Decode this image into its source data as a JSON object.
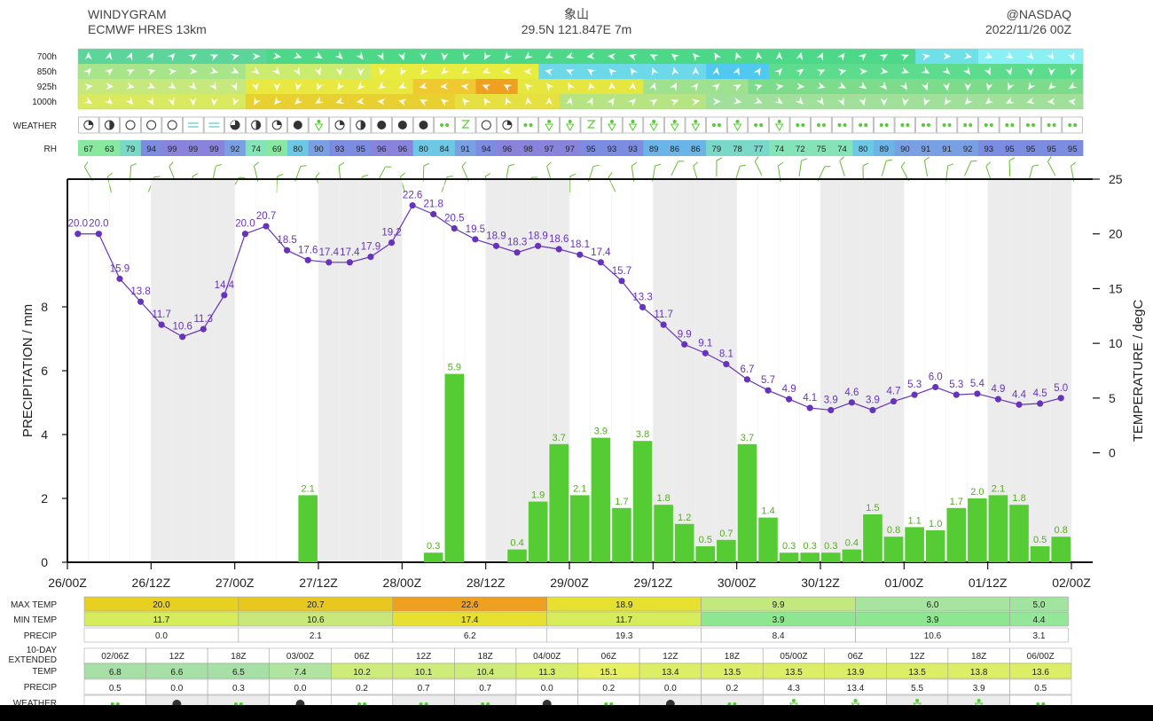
{
  "header": {
    "title": "WINDYGRAM",
    "model": "ECMWF HRES 13km",
    "place": "象山",
    "coords": "29.5N 121.847E 7m",
    "brand": "@NASDAQ",
    "run": "2022/11/26 00Z"
  },
  "strip_labels": {
    "levels": [
      "700h",
      "850h",
      "925h",
      "1000h"
    ],
    "weather": "WEATHER",
    "rh": "RH"
  },
  "rh": [
    67,
    63,
    79,
    94,
    99,
    99,
    99,
    92,
    74,
    69,
    80,
    90,
    93,
    95,
    96,
    96,
    80,
    84,
    91,
    94,
    96,
    98,
    97,
    97,
    95,
    93,
    93,
    89,
    86,
    86,
    79,
    78,
    77,
    74,
    72,
    75,
    74,
    80,
    89,
    90,
    91,
    91,
    92,
    93,
    95,
    95,
    95,
    95
  ],
  "weather": [
    "partly",
    "half",
    "clear",
    "clear",
    "clear",
    "fog",
    "fog",
    "cloud3q",
    "half",
    "partly",
    "overcast",
    "shower",
    "partly",
    "half",
    "overcast",
    "overcast",
    "overcast",
    "rain",
    "storm",
    "clear",
    "partly",
    "rain",
    "shower",
    "shower",
    "storm",
    "shower",
    "shower",
    "shower",
    "shower",
    "shower",
    "rain",
    "shower",
    "rain",
    "shower",
    "rain",
    "rain",
    "rain",
    "rain",
    "rain",
    "rain",
    "rain",
    "rain",
    "rain",
    "rain",
    "rain",
    "rain",
    "rain",
    "rain"
  ],
  "chart_data": {
    "type": "bar+line",
    "x_ticks": [
      "26/00Z",
      "26/12Z",
      "27/00Z",
      "27/12Z",
      "28/00Z",
      "28/12Z",
      "29/00Z",
      "29/12Z",
      "30/00Z",
      "30/12Z",
      "01/00Z",
      "01/12Z",
      "02/00Z"
    ],
    "ylabel_left": "PRECIPITATION / mm",
    "ylim_left": [
      0,
      12
    ],
    "yticks_left": [
      0,
      2,
      4,
      6,
      8
    ],
    "ylabel_right": "TEMPERATURE / degC",
    "ylim_right": [
      -10,
      25
    ],
    "yticks_right": [
      0,
      5,
      10,
      15,
      20,
      25
    ],
    "temperature": [
      20.0,
      20.0,
      15.9,
      13.8,
      11.7,
      10.6,
      11.3,
      14.4,
      20.0,
      20.7,
      18.5,
      17.6,
      17.4,
      17.4,
      17.9,
      19.2,
      22.6,
      21.8,
      20.5,
      19.5,
      18.9,
      18.3,
      18.9,
      18.6,
      18.1,
      17.4,
      15.7,
      13.3,
      11.7,
      9.9,
      9.1,
      8.1,
      6.7,
      5.7,
      4.9,
      4.1,
      3.9,
      4.6,
      3.9,
      4.7,
      5.3,
      6.0,
      5.3,
      5.4,
      4.9,
      4.4,
      4.5,
      5.0
    ],
    "precipitation": [
      {
        "step": 11,
        "value": 2.1
      },
      {
        "step": 17,
        "value": 0.3
      },
      {
        "step": 18,
        "value": 5.9
      },
      {
        "step": 21,
        "value": 0.4
      },
      {
        "step": 22,
        "value": 1.9
      },
      {
        "step": 23,
        "value": 3.7
      },
      {
        "step": 24,
        "value": 2.1
      },
      {
        "step": 25,
        "value": 3.9
      },
      {
        "step": 26,
        "value": 1.7
      },
      {
        "step": 27,
        "value": 3.8
      },
      {
        "step": 28,
        "value": 1.8
      },
      {
        "step": 29,
        "value": 1.2
      },
      {
        "step": 30,
        "value": 0.5
      },
      {
        "step": 31,
        "value": 0.7
      },
      {
        "step": 32,
        "value": 3.7
      },
      {
        "step": 33,
        "value": 1.4
      },
      {
        "step": 34,
        "value": 0.3
      },
      {
        "step": 35,
        "value": 0.3
      },
      {
        "step": 36,
        "value": 0.3
      },
      {
        "step": 37,
        "value": 0.4
      },
      {
        "step": 38,
        "value": 1.5
      },
      {
        "step": 39,
        "value": 0.8
      },
      {
        "step": 40,
        "value": 1.1
      },
      {
        "step": 41,
        "value": 1.0
      },
      {
        "step": 42,
        "value": 1.7
      },
      {
        "step": 43,
        "value": 2.0
      },
      {
        "step": 44,
        "value": 2.1
      },
      {
        "step": 45,
        "value": 1.8
      },
      {
        "step": 46,
        "value": 0.5
      },
      {
        "step": 47,
        "value": 0.8
      }
    ],
    "colors": {
      "temp": "#6633bb",
      "precip": "#55cc33",
      "precip_label": "#55aa22",
      "night": "#ececec"
    }
  },
  "daily_table": {
    "labels": [
      "MAX TEMP",
      "MIN TEMP",
      "PRECIP"
    ],
    "days": [
      {
        "max": "20.0",
        "min": "11.7",
        "precip": "0.0",
        "max_color": "#e8d020",
        "min_color": "#d6ec5a"
      },
      {
        "max": "20.7",
        "min": "10.6",
        "precip": "2.1",
        "max_color": "#e8c820",
        "min_color": "#c8e87a"
      },
      {
        "max": "22.6",
        "min": "17.4",
        "precip": "6.2",
        "max_color": "#f0a020",
        "min_color": "#e8e030"
      },
      {
        "max": "18.9",
        "min": "11.7",
        "precip": "19.3",
        "max_color": "#e6e030",
        "min_color": "#d6ec5a"
      },
      {
        "max": "9.9",
        "min": "3.9",
        "precip": "8.4",
        "max_color": "#c4e880",
        "min_color": "#8ee690"
      },
      {
        "max": "6.0",
        "min": "3.9",
        "precip": "10.6",
        "max_color": "#a6e4a0",
        "min_color": "#8ee690"
      },
      {
        "max": "5.0",
        "min": "4.4",
        "precip": "3.1",
        "max_color": "#a0e4a0",
        "min_color": "#94e698"
      }
    ]
  },
  "extended": {
    "label_a": "10-DAY",
    "label_b": "EXTENDED",
    "temp_label": "TEMP",
    "precip_label": "PRECIP",
    "weather_label": "WEATHER",
    "cols": [
      {
        "t": "02/06Z",
        "temp": "6.8",
        "precip": "0.5",
        "w": "rain",
        "c": "#a6e0a6"
      },
      {
        "t": "12Z",
        "temp": "6.6",
        "precip": "0.0",
        "w": "overcast",
        "c": "#a6e0a6"
      },
      {
        "t": "18Z",
        "temp": "6.5",
        "precip": "0.3",
        "w": "rain",
        "c": "#a6e0a6"
      },
      {
        "t": "03/00Z",
        "temp": "7.4",
        "precip": "0.0",
        "w": "overcast",
        "c": "#b0e4a0"
      },
      {
        "t": "06Z",
        "temp": "10.2",
        "precip": "0.2",
        "w": "rain",
        "c": "#cdec7a"
      },
      {
        "t": "12Z",
        "temp": "10.1",
        "precip": "0.7",
        "w": "rain",
        "c": "#cdec7a"
      },
      {
        "t": "18Z",
        "temp": "10.4",
        "precip": "0.7",
        "w": "rain",
        "c": "#cdec7a"
      },
      {
        "t": "04/00Z",
        "temp": "11.3",
        "precip": "0.0",
        "w": "overcast",
        "c": "#d6ee6a"
      },
      {
        "t": "06Z",
        "temp": "15.1",
        "precip": "0.2",
        "w": "rain",
        "c": "#e6f060"
      },
      {
        "t": "12Z",
        "temp": "13.4",
        "precip": "0.0",
        "w": "overcast",
        "c": "#dcee66"
      },
      {
        "t": "18Z",
        "temp": "13.5",
        "precip": "0.2",
        "w": "rain",
        "c": "#dcee66"
      },
      {
        "t": "05/00Z",
        "temp": "13.5",
        "precip": "4.3",
        "w": "shower",
        "c": "#dcee66"
      },
      {
        "t": "06Z",
        "temp": "13.9",
        "precip": "13.4",
        "w": "shower",
        "c": "#dcee66"
      },
      {
        "t": "12Z",
        "temp": "13.5",
        "precip": "5.5",
        "w": "shower",
        "c": "#dcee66"
      },
      {
        "t": "18Z",
        "temp": "13.8",
        "precip": "3.9",
        "w": "shower",
        "c": "#dcee66"
      },
      {
        "t": "06/00Z",
        "temp": "13.6",
        "precip": "0.5",
        "w": "rain",
        "c": "#dcee66"
      }
    ]
  }
}
